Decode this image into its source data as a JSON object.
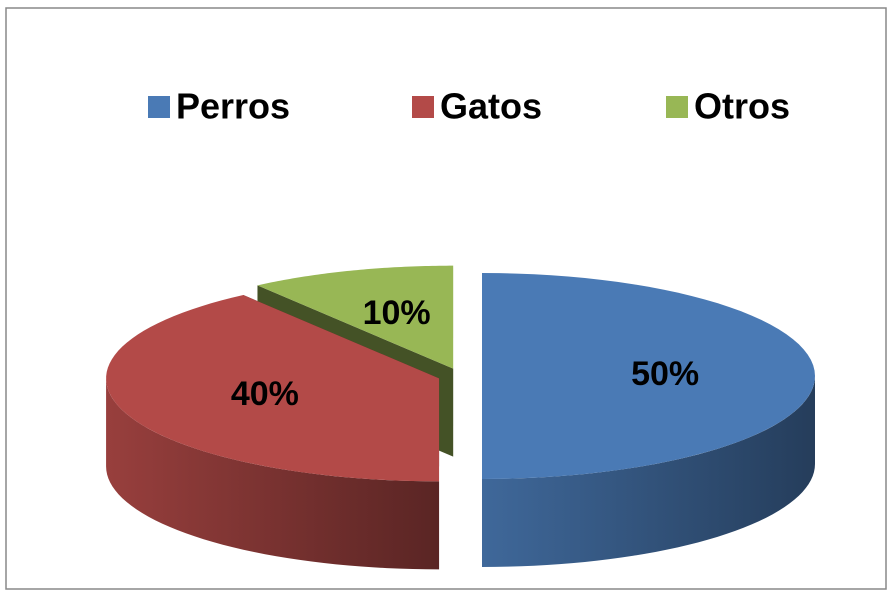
{
  "chart_data": {
    "type": "pie3d",
    "categories": [
      "Perros",
      "Gatos",
      "Otros"
    ],
    "values": [
      50,
      40,
      10
    ],
    "value_labels": [
      "50%",
      "40%",
      "10%"
    ],
    "colors": [
      "#4a7ab5",
      "#b34a48",
      "#98b755"
    ],
    "legend": "top"
  }
}
